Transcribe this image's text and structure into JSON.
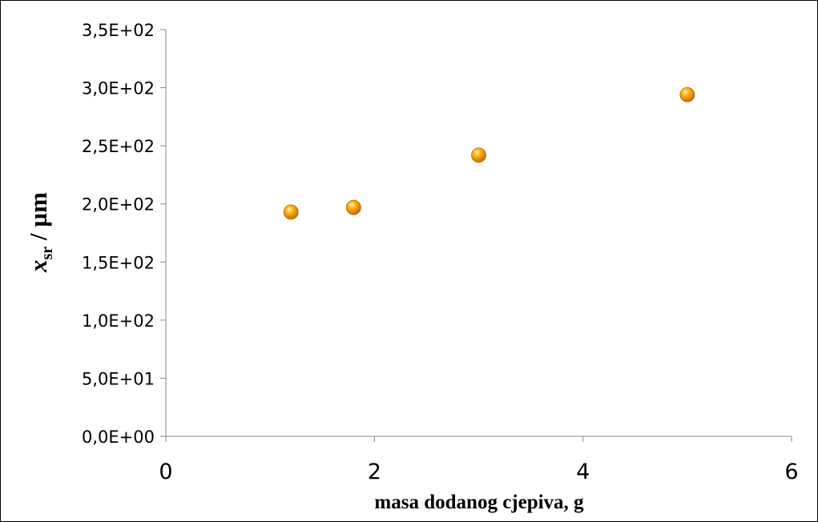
{
  "chart_data": {
    "type": "scatter",
    "title": "",
    "xlabel": "masa dodanog cjepiva, g",
    "ylabel": {
      "main": "x",
      "subscript": "sr",
      "unit": " / µm"
    },
    "xlim": [
      0,
      6
    ],
    "ylim": [
      0,
      350
    ],
    "x_ticks": [
      0,
      2,
      4,
      6
    ],
    "x_tick_labels": [
      "0",
      "2",
      "4",
      "6"
    ],
    "y_ticks": [
      0,
      50,
      100,
      150,
      200,
      250,
      300,
      350
    ],
    "y_tick_labels": [
      "0,0E+00",
      "5,0E+01",
      "1,0E+02",
      "1,5E+02",
      "2,0E+02",
      "2,5E+02",
      "3,0E+02",
      "3,5E+02"
    ],
    "grid": false,
    "legend": "none",
    "series": [
      {
        "x": [
          1.2,
          1.8,
          3.0,
          5.0
        ],
        "y": [
          193,
          197,
          242,
          294
        ],
        "color": "#f5a00a"
      }
    ]
  }
}
